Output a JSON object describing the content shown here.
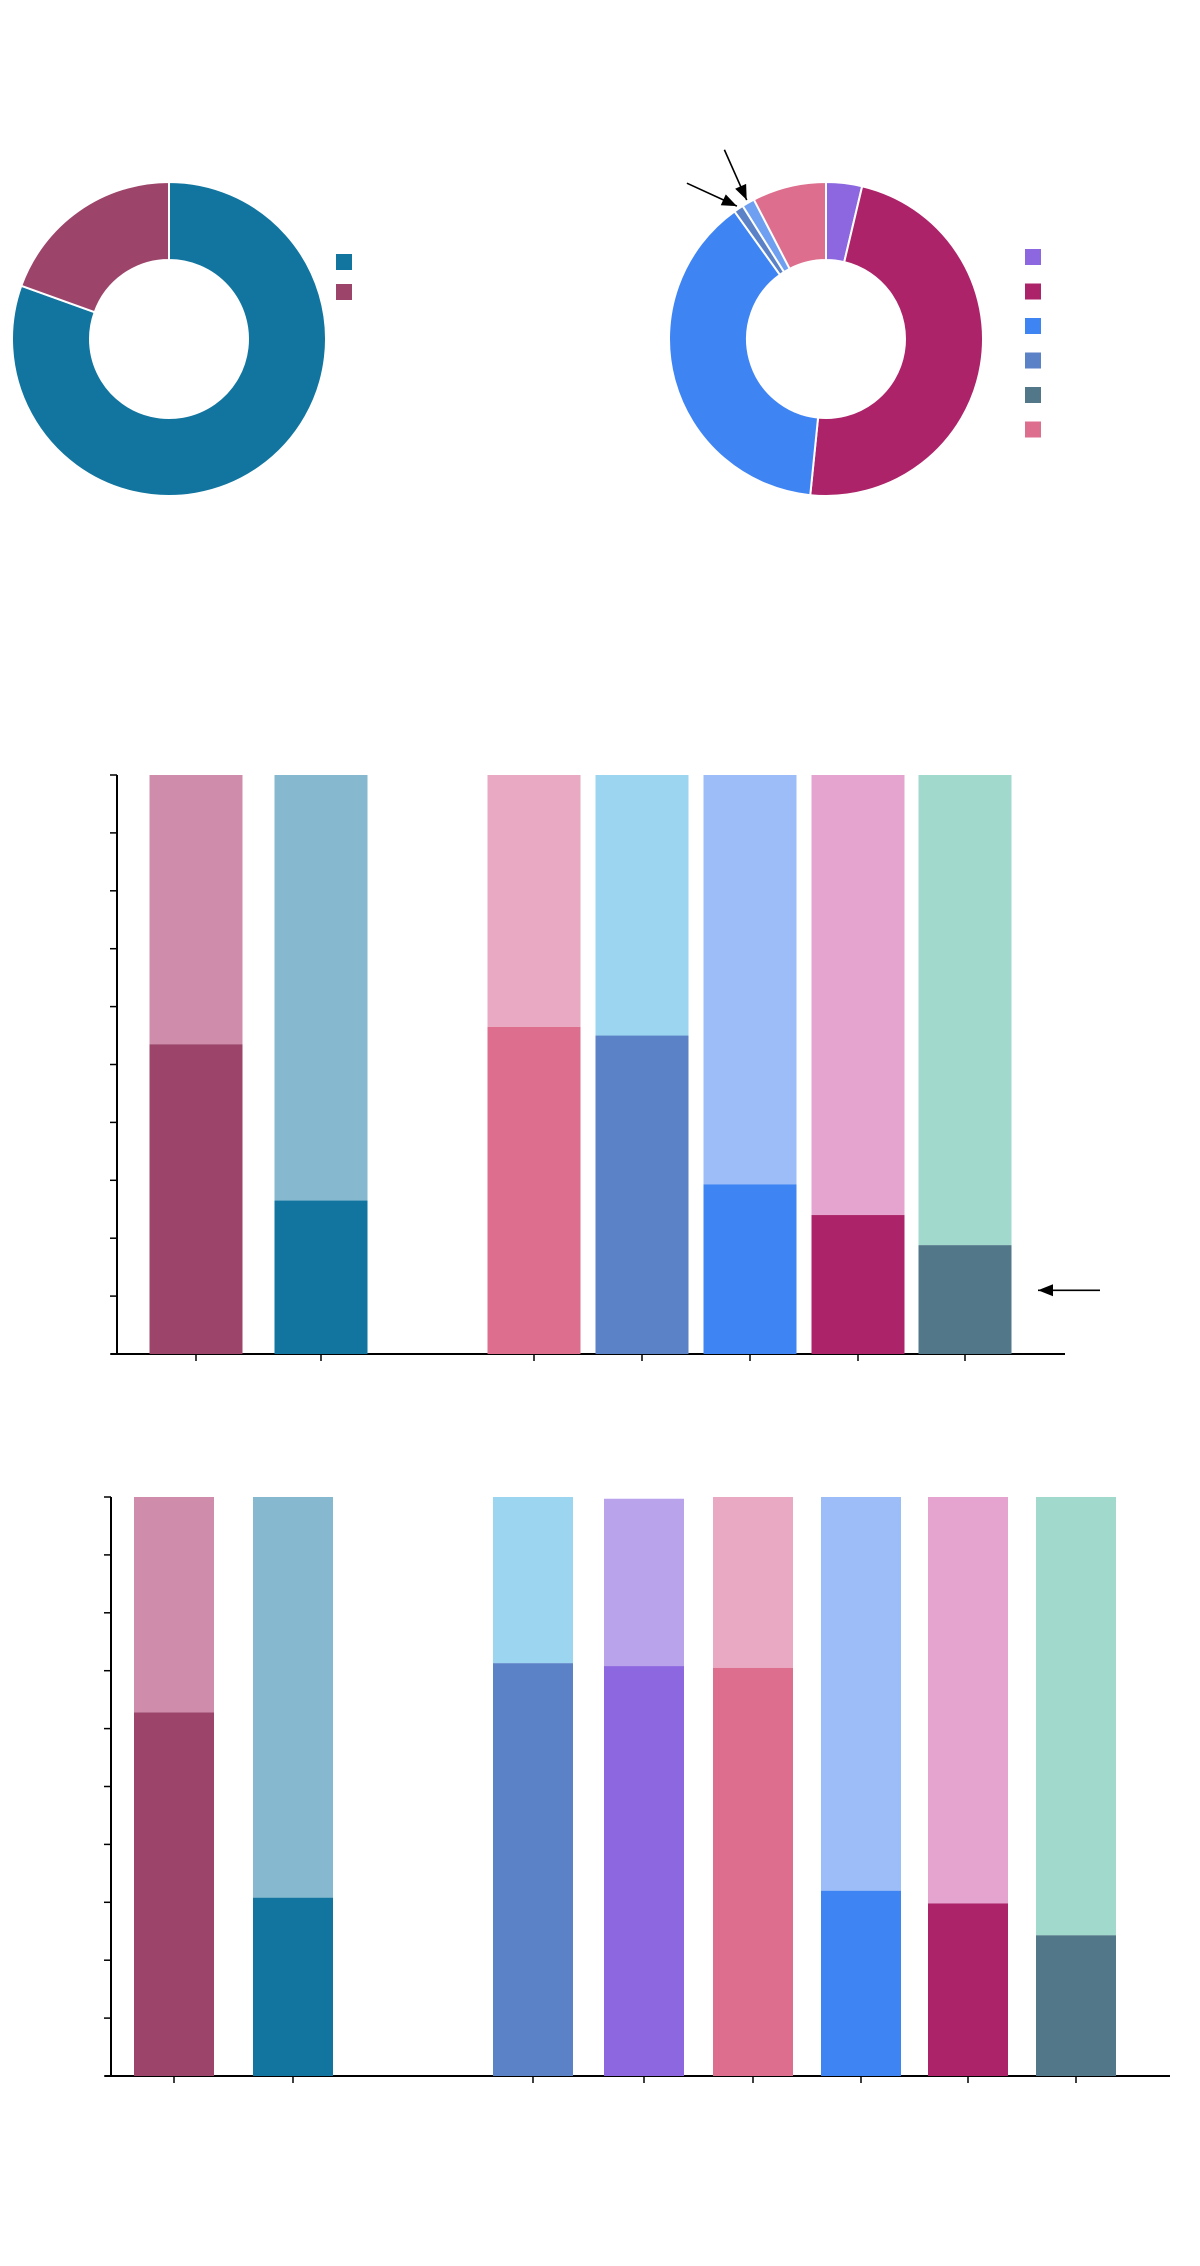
{
  "chart_data": [
    {
      "type": "pie",
      "donut": true,
      "slices": [
        {
          "value": 80.5,
          "color": "#11759f"
        },
        {
          "value": 19.5,
          "color": "#9c446a"
        }
      ],
      "legend": {
        "position": "right",
        "colors": [
          "#11759f",
          "#9c446a"
        ]
      }
    },
    {
      "type": "pie",
      "donut": true,
      "slices": [
        {
          "value": 3.7,
          "color": "#8d67df"
        },
        {
          "value": 47.9,
          "color": "#ac2369"
        },
        {
          "value": 38.5,
          "color": "#3f84f3"
        },
        {
          "value": 1.0,
          "color": "#5b82c7"
        },
        {
          "value": 1.3,
          "color": "#6f9ff0"
        },
        {
          "value": 7.6,
          "color": "#dd6e8e"
        }
      ],
      "annotations": [
        {
          "type": "arrow",
          "slice": 3
        },
        {
          "type": "arrow",
          "slice": 4
        }
      ],
      "legend": {
        "position": "right",
        "colors": [
          "#8d67df",
          "#ac2369",
          "#3f84f3",
          "#5b82c7",
          "#527789",
          "#dd6e8e"
        ]
      }
    },
    {
      "type": "bar",
      "stacked": true,
      "ylim": [
        0,
        100
      ],
      "yticks": [
        0,
        10,
        20,
        30,
        40,
        50,
        60,
        70,
        80,
        90,
        100
      ],
      "groups": [
        2,
        5
      ],
      "bars": [
        {
          "value": 53.5,
          "color": "#9c446a",
          "rest_color": "#cf8dab"
        },
        {
          "value": 26.5,
          "color": "#11759f",
          "rest_color": "#86b8cf"
        },
        {
          "value": 56.5,
          "color": "#dd6e8e",
          "rest_color": "#e9a9c2"
        },
        {
          "value": 55.0,
          "color": "#5b82c7",
          "rest_color": "#9bd5f0"
        },
        {
          "value": 29.3,
          "color": "#3f84f3",
          "rest_color": "#9dbdf8"
        },
        {
          "value": 24.0,
          "color": "#ac2369",
          "rest_color": "#e4a4cf"
        },
        {
          "value": 18.8,
          "color": "#527789",
          "rest_color": "#a1d9cc"
        }
      ],
      "annotations": [
        {
          "type": "arrow",
          "bar": 6,
          "y": 11
        }
      ]
    },
    {
      "type": "bar",
      "stacked": true,
      "ylim": [
        0,
        100
      ],
      "yticks": [
        0,
        10,
        20,
        30,
        40,
        50,
        60,
        70,
        80,
        90,
        100
      ],
      "groups": [
        2,
        6
      ],
      "bars": [
        {
          "value": 62.8,
          "color": "#9c446a",
          "rest_color": "#cf8dab"
        },
        {
          "value": 30.8,
          "color": "#11759f",
          "rest_color": "#86b8cf"
        },
        {
          "value": 71.3,
          "color": "#5b82c7",
          "rest_color": "#9bd5f0"
        },
        {
          "value": 70.8,
          "color": "#8d67df",
          "rest_color": "#b9a4ec",
          "total": 99.7
        },
        {
          "value": 70.5,
          "color": "#dd6e8e",
          "rest_color": "#e9a9c2"
        },
        {
          "value": 32.0,
          "color": "#3f84f3",
          "rest_color": "#9dbdf8"
        },
        {
          "value": 29.8,
          "color": "#ac2369",
          "rest_color": "#e4a4cf"
        },
        {
          "value": 24.3,
          "color": "#527789",
          "rest_color": "#a1d9cc"
        }
      ]
    }
  ]
}
